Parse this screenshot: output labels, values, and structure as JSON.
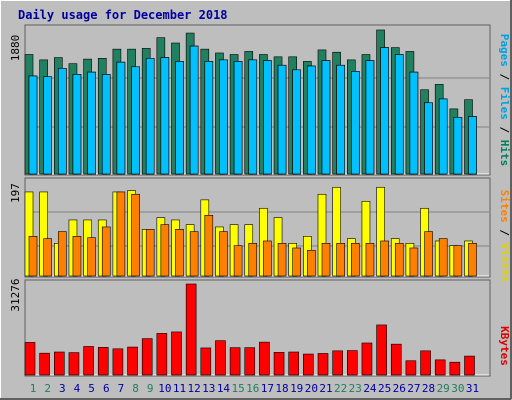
{
  "chart_data": [
    {
      "type": "bar",
      "title": "Daily usage for December 2018",
      "panel": "hits-files-pages",
      "ytick_label": "1880",
      "ylim": [
        0,
        1880
      ],
      "legend": [
        "Pages",
        "Files",
        "Hits"
      ],
      "legend_colors": [
        "#00a0e0",
        "#00a0e0",
        "#00805c"
      ],
      "categories": [
        "1",
        "2",
        "3",
        "4",
        "5",
        "6",
        "7",
        "8",
        "9",
        "10",
        "11",
        "12",
        "13",
        "14",
        "15",
        "16",
        "17",
        "18",
        "19",
        "20",
        "21",
        "22",
        "23",
        "24",
        "25",
        "26",
        "27",
        "28",
        "29",
        "30",
        "31"
      ],
      "series": [
        {
          "name": "Hits",
          "color": "#208060",
          "values": [
            1560,
            1490,
            1520,
            1440,
            1500,
            1510,
            1630,
            1630,
            1640,
            1780,
            1710,
            1840,
            1630,
            1580,
            1560,
            1600,
            1560,
            1530,
            1530,
            1470,
            1620,
            1590,
            1490,
            1560,
            1880,
            1650,
            1600,
            1100,
            1170,
            850,
            970
          ]
        },
        {
          "name": "Files",
          "color": "#00a0e0",
          "values": [
            1280,
            1270,
            1380,
            1300,
            1330,
            1300,
            1460,
            1400,
            1510,
            1520,
            1470,
            1670,
            1470,
            1490,
            1470,
            1490,
            1480,
            1420,
            1360,
            1410,
            1480,
            1420,
            1340,
            1480,
            1650,
            1560,
            1330,
            930,
            980,
            740,
            750
          ]
        },
        {
          "name": "Pages",
          "color": "#00c0ff",
          "values": [
            1280,
            1270,
            1380,
            1300,
            1330,
            1300,
            1460,
            1400,
            1510,
            1520,
            1470,
            1670,
            1470,
            1490,
            1470,
            1490,
            1480,
            1420,
            1360,
            1410,
            1480,
            1420,
            1340,
            1480,
            1650,
            1560,
            1330,
            930,
            980,
            740,
            750
          ]
        }
      ]
    },
    {
      "type": "bar",
      "panel": "visits-sites",
      "ytick_label": "197",
      "ylim": [
        0,
        197
      ],
      "legend": [
        "Sites",
        "Visits"
      ],
      "legend_colors": [
        "#ff8000",
        "#e0d000"
      ],
      "categories": [
        "1",
        "2",
        "3",
        "4",
        "5",
        "6",
        "7",
        "8",
        "9",
        "10",
        "11",
        "12",
        "13",
        "14",
        "15",
        "16",
        "17",
        "18",
        "19",
        "20",
        "21",
        "22",
        "23",
        "24",
        "25",
        "26",
        "27",
        "28",
        "29",
        "30",
        "31"
      ],
      "series": [
        {
          "name": "Visits",
          "color": "#ffff00",
          "values": [
            180,
            180,
            70,
            120,
            120,
            120,
            180,
            183,
            100,
            125,
            120,
            110,
            163,
            105,
            110,
            110,
            145,
            125,
            70,
            85,
            175,
            190,
            80,
            160,
            190,
            80,
            70,
            145,
            75,
            65,
            75
          ]
        },
        {
          "name": "Sites",
          "color": "#ff8000",
          "values": [
            85,
            80,
            95,
            85,
            82,
            105,
            180,
            175,
            100,
            110,
            100,
            95,
            130,
            95,
            65,
            70,
            75,
            70,
            60,
            55,
            70,
            70,
            70,
            70,
            75,
            70,
            60,
            95,
            80,
            65,
            70
          ]
        }
      ]
    },
    {
      "type": "bar",
      "panel": "kbytes",
      "ytick_label": "31276",
      "ylim": [
        0,
        31276
      ],
      "legend": [
        "KBytes"
      ],
      "legend_colors": [
        "#e00000"
      ],
      "categories": [
        "1",
        "2",
        "3",
        "4",
        "5",
        "6",
        "7",
        "8",
        "9",
        "10",
        "11",
        "12",
        "13",
        "14",
        "15",
        "16",
        "17",
        "18",
        "19",
        "20",
        "21",
        "22",
        "23",
        "24",
        "25",
        "26",
        "27",
        "28",
        "29",
        "30",
        "31"
      ],
      "series": [
        {
          "name": "KBytes",
          "color": "#ff0000",
          "values": [
            11200,
            7500,
            7900,
            7700,
            9800,
            9500,
            9000,
            9600,
            12500,
            14300,
            14800,
            31276,
            9300,
            11800,
            9400,
            9400,
            11300,
            7800,
            7900,
            7200,
            7400,
            8300,
            8400,
            11000,
            17200,
            10600,
            4900,
            8300,
            5200,
            4400,
            6500
          ]
        }
      ]
    }
  ],
  "colors": {
    "background": "#bebebe",
    "frame_light": "#ffffff",
    "frame_dark": "#606060",
    "title_color": "#0000a0",
    "weekend_label": "#208060",
    "weekday_label": "#0000a0"
  },
  "weekend_days": [
    "1",
    "2",
    "8",
    "9",
    "15",
    "16",
    "22",
    "23",
    "29",
    "30"
  ]
}
